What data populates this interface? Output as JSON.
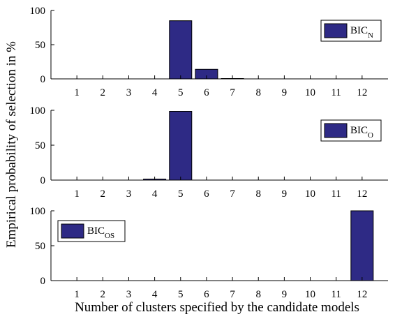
{
  "chart_data": [
    {
      "type": "bar",
      "categories": [
        "1",
        "2",
        "3",
        "4",
        "5",
        "6",
        "7",
        "8",
        "9",
        "10",
        "11",
        "12"
      ],
      "values": [
        0,
        0,
        0,
        0,
        85,
        14,
        0.5,
        0,
        0,
        0,
        0,
        0
      ],
      "ylim": [
        0,
        100
      ],
      "yticks": [
        "0",
        "50",
        "100"
      ],
      "legend": {
        "base": "BIC",
        "sub": "N",
        "placement": "top-right"
      },
      "bar_color": "#2e2a85"
    },
    {
      "type": "bar",
      "categories": [
        "1",
        "2",
        "3",
        "4",
        "5",
        "6",
        "7",
        "8",
        "9",
        "10",
        "11",
        "12"
      ],
      "values": [
        0,
        0,
        0,
        1.5,
        98.5,
        0,
        0,
        0,
        0,
        0,
        0,
        0
      ],
      "ylim": [
        0,
        100
      ],
      "yticks": [
        "0",
        "50",
        "100"
      ],
      "legend": {
        "base": "BIC",
        "sub": "O",
        "placement": "top-right"
      },
      "bar_color": "#2e2a85"
    },
    {
      "type": "bar",
      "categories": [
        "1",
        "2",
        "3",
        "4",
        "5",
        "6",
        "7",
        "8",
        "9",
        "10",
        "11",
        "12"
      ],
      "values": [
        0,
        0,
        0,
        0,
        0,
        0,
        0,
        0,
        0,
        0,
        0,
        100
      ],
      "ylim": [
        0,
        100
      ],
      "yticks": [
        "0",
        "50",
        "100"
      ],
      "legend": {
        "base": "BIC",
        "sub": "OS",
        "placement": "top-left"
      },
      "bar_color": "#2e2a85"
    }
  ],
  "labels": {
    "xlabel": "Number of clusters specified by the candidate models",
    "ylabel": "Empirical probability of selection in %"
  }
}
